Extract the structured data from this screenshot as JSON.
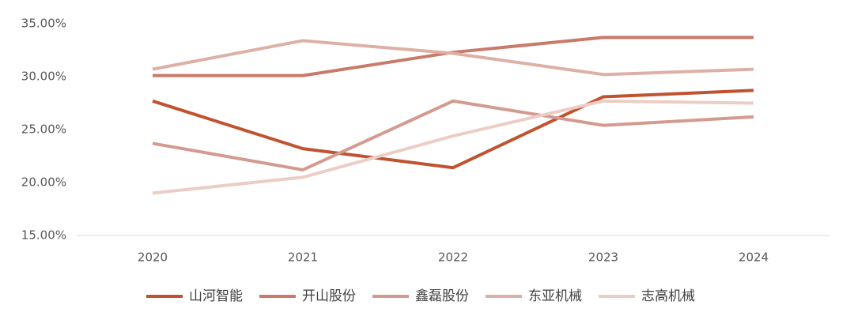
{
  "chart_data": {
    "type": "line",
    "categories": [
      "2020",
      "2021",
      "2022",
      "2023",
      "2024"
    ],
    "series": [
      {
        "name": "山河智能",
        "color": "#c0532f",
        "values": [
          27.7,
          23.2,
          21.4,
          28.1,
          28.7
        ]
      },
      {
        "name": "开山股份",
        "color": "#c97a6a",
        "values": [
          30.1,
          30.1,
          32.3,
          33.7,
          33.7
        ]
      },
      {
        "name": "鑫磊股份",
        "color": "#d39b8f",
        "values": [
          23.7,
          21.2,
          27.7,
          25.4,
          26.2
        ]
      },
      {
        "name": "东亚机械",
        "color": "#ddb0a6",
        "values": [
          30.7,
          33.4,
          32.2,
          30.2,
          30.7
        ]
      },
      {
        "name": "志高机械",
        "color": "#ebcdc6",
        "values": [
          19.0,
          20.5,
          24.4,
          27.7,
          27.5
        ]
      }
    ],
    "ylim": [
      15,
      35
    ],
    "yticks": [
      {
        "value": 15,
        "label": "15.00%"
      },
      {
        "value": 20,
        "label": "20.00%"
      },
      {
        "value": 25,
        "label": "25.00%"
      },
      {
        "value": 30,
        "label": "30.00%"
      },
      {
        "value": 35,
        "label": "35.00%"
      }
    ],
    "grid": false,
    "legend": "bottom"
  }
}
